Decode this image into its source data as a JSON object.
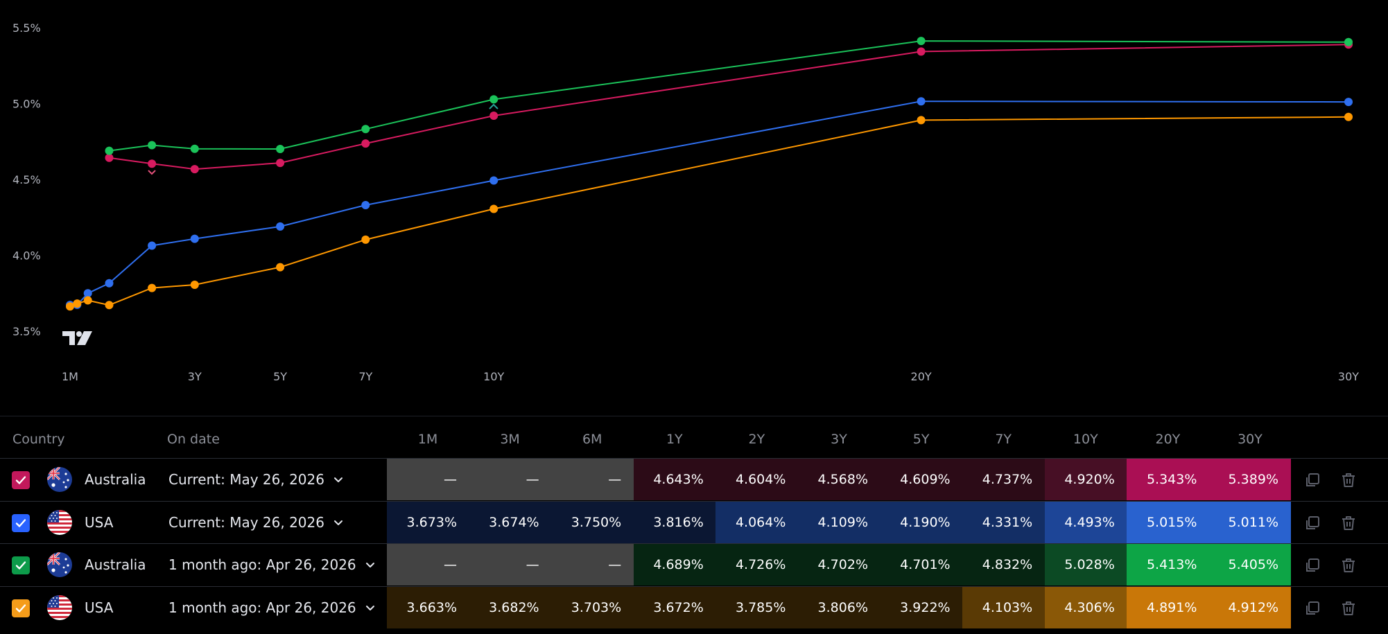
{
  "chart_data": {
    "type": "line",
    "x_ticks": [
      "1M",
      "3Y",
      "5Y",
      "7Y",
      "10Y",
      "20Y",
      "30Y"
    ],
    "y_ticks": [
      "5.5%",
      "5.0%",
      "4.5%",
      "4.0%",
      "3.5%"
    ],
    "ylim": [
      3.5,
      5.5
    ],
    "series": [
      {
        "name": "Australia Current: May 26, 2026",
        "color": "#d81b60",
        "points": [
          [
            1,
            4.643
          ],
          [
            2,
            4.604
          ],
          [
            3,
            4.568
          ],
          [
            5,
            4.609
          ],
          [
            7,
            4.737
          ],
          [
            10,
            4.92
          ],
          [
            20,
            5.343
          ],
          [
            30,
            5.389
          ]
        ]
      },
      {
        "name": "USA Current: May 26, 2026",
        "color": "#2f6fef",
        "points": [
          [
            0.0833,
            3.673
          ],
          [
            0.25,
            3.674
          ],
          [
            0.5,
            3.75
          ],
          [
            1,
            3.816
          ],
          [
            2,
            4.064
          ],
          [
            3,
            4.109
          ],
          [
            5,
            4.19
          ],
          [
            7,
            4.331
          ],
          [
            10,
            4.493
          ],
          [
            20,
            5.015
          ],
          [
            30,
            5.011
          ]
        ]
      },
      {
        "name": "Australia 1 month ago: Apr 26, 2026",
        "color": "#1bc35a",
        "points": [
          [
            1,
            4.689
          ],
          [
            2,
            4.726
          ],
          [
            3,
            4.702
          ],
          [
            5,
            4.701
          ],
          [
            7,
            4.832
          ],
          [
            10,
            5.028
          ],
          [
            20,
            5.413
          ],
          [
            30,
            5.405
          ]
        ]
      },
      {
        "name": "USA 1 month ago: Apr 26, 2026",
        "color": "#ff9800",
        "points": [
          [
            0.0833,
            3.663
          ],
          [
            0.25,
            3.682
          ],
          [
            0.5,
            3.703
          ],
          [
            1,
            3.672
          ],
          [
            2,
            3.785
          ],
          [
            3,
            3.806
          ],
          [
            5,
            3.922
          ],
          [
            7,
            4.103
          ],
          [
            10,
            4.306
          ],
          [
            20,
            4.891
          ],
          [
            30,
            4.912
          ]
        ]
      }
    ]
  },
  "table": {
    "headers": {
      "country": "Country",
      "on_date": "On date",
      "tenors": [
        "1M",
        "3M",
        "6M",
        "1Y",
        "2Y",
        "3Y",
        "5Y",
        "7Y",
        "10Y",
        "20Y",
        "30Y"
      ]
    },
    "rows": [
      {
        "country": "Australia",
        "date": "Current: May 26, 2026",
        "check_color": "#c2185b",
        "values": [
          "—",
          "—",
          "—",
          "4.643%",
          "4.604%",
          "4.568%",
          "4.609%",
          "4.737%",
          "4.920%",
          "5.343%",
          "5.389%"
        ],
        "colors": [
          "#434343",
          "#434343",
          "#434343",
          "#2c0b17",
          "#2c0b17",
          "#2c0b17",
          "#2c0b17",
          "#2c0b17",
          "#470f25",
          "#aa0f54",
          "#aa0f54"
        ]
      },
      {
        "country": "USA",
        "date": "Current: May 26, 2026",
        "check_color": "#2962ff",
        "values": [
          "3.673%",
          "3.674%",
          "3.750%",
          "3.816%",
          "4.064%",
          "4.109%",
          "4.190%",
          "4.331%",
          "4.493%",
          "5.015%",
          "5.011%"
        ],
        "colors": [
          "#0b1733",
          "#0b1733",
          "#0b1733",
          "#0b1733",
          "#132e65",
          "#132e65",
          "#132e65",
          "#132e65",
          "#1d4597",
          "#2962cf",
          "#2962cf"
        ]
      },
      {
        "country": "Australia",
        "date": "1 month ago: Apr 26, 2026",
        "check_color": "#0d9b4a",
        "values": [
          "—",
          "—",
          "—",
          "4.689%",
          "4.726%",
          "4.702%",
          "4.701%",
          "4.832%",
          "5.028%",
          "5.413%",
          "5.405%"
        ],
        "colors": [
          "#434343",
          "#434343",
          "#434343",
          "#062512",
          "#062512",
          "#062512",
          "#062512",
          "#062512",
          "#0c4a24",
          "#0da546",
          "#0da546"
        ]
      },
      {
        "country": "USA",
        "date": "1 month ago: Apr 26, 2026",
        "check_color": "#f59c1a",
        "values": [
          "3.663%",
          "3.682%",
          "3.703%",
          "3.672%",
          "3.785%",
          "3.806%",
          "3.922%",
          "4.103%",
          "4.306%",
          "4.891%",
          "4.912%"
        ],
        "colors": [
          "#2c1d04",
          "#2c1d04",
          "#2c1d04",
          "#2c1d04",
          "#2c1d04",
          "#2c1d04",
          "#2c1d04",
          "#5a3a05",
          "#8a5807",
          "#c97708",
          "#c97708"
        ]
      }
    ]
  },
  "icons": {
    "logo": "tradingview-logo",
    "checkbox": "check-icon",
    "chevron": "chevron-down-icon",
    "copy": "copy-icon",
    "delete": "trash-icon"
  }
}
